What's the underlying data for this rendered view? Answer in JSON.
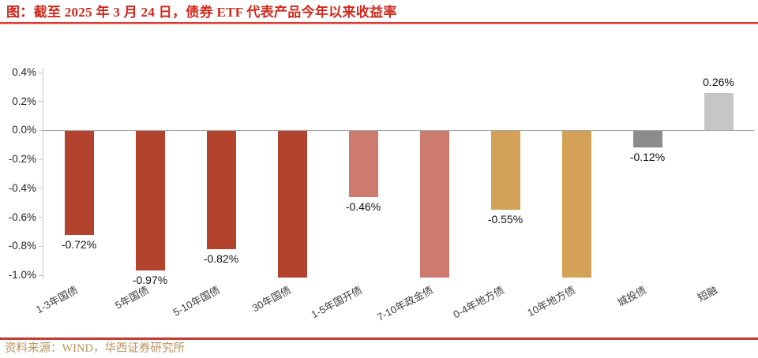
{
  "header": {
    "title": "图：截至 2025 年 3 月 24 日，债券 ETF 代表产品今年以来收益率"
  },
  "footer": {
    "source": "资料来源：WIND，华西证券研究所"
  },
  "colors": {
    "title_red": "#D0281C",
    "top_rule_red": "#E03A30",
    "bottom_rule_red": "#C23B30",
    "dark_red_bar": "#B3432C",
    "salmon_bar": "#CC7B6E",
    "gold_bar": "#D4A256",
    "dark_gray_bar": "#8C8C8C",
    "light_gray_bar": "#C6C6C6",
    "source_text_gold": "#B9935A",
    "axis_line_gray": "#C6C6C6",
    "zero_line_gray": "#A6A6A6"
  },
  "chart_data": {
    "type": "bar",
    "title": "截至 2025 年 3 月 24 日，债券 ETF 代表产品今年以来收益率",
    "categories": [
      "1-3年国债",
      "5年国债",
      "5-10年国债",
      "30年国债",
      "1-5年国开债",
      "7-10年政金债",
      "0-4年地方债",
      "10年地方债",
      "城投债",
      "短融"
    ],
    "values": [
      -0.72,
      -0.97,
      -0.82,
      -1.0,
      -0.46,
      -1.0,
      -0.55,
      -1.0,
      -0.12,
      0.26
    ],
    "value_labels": [
      "-0.72%",
      "-0.97%",
      "-0.82%",
      "",
      "-0.46%",
      "",
      "-0.55%",
      "",
      "-0.12%",
      "0.26%"
    ],
    "bar_colors": [
      "#B3432C",
      "#B3432C",
      "#B3432C",
      "#B3432C",
      "#CC7B6E",
      "#CC7B6E",
      "#D4A256",
      "#D4A256",
      "#8C8C8C",
      "#C6C6C6"
    ],
    "clipped_at_axis_min": [
      false,
      false,
      false,
      true,
      false,
      true,
      false,
      true,
      false,
      false
    ],
    "unit": "%",
    "ylim": [
      -1.0,
      0.4
    ],
    "ytick_values": [
      0.4,
      0.2,
      0.0,
      -0.2,
      -0.4,
      -0.6,
      -0.8,
      -1.0
    ],
    "ytick_labels": [
      "0.4%",
      "0.2%",
      "0.0%",
      "-0.2%",
      "-0.4%",
      "-0.6%",
      "-0.8%",
      "-1.0%"
    ],
    "xlabel": "",
    "ylabel": "",
    "grid": "off",
    "legend": "none"
  }
}
